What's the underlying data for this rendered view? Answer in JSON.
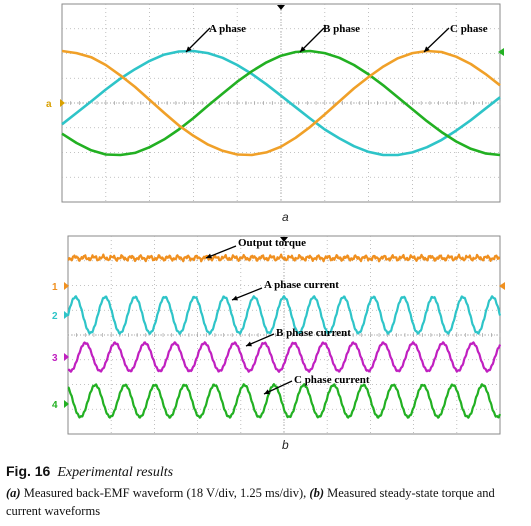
{
  "chart_data": [
    {
      "panel_label": "a",
      "type": "line",
      "x": [
        0,
        1,
        2,
        3,
        4,
        5,
        6,
        7,
        8,
        9,
        10,
        11,
        12,
        13,
        14,
        15,
        16,
        17,
        18,
        19,
        20,
        21,
        22,
        23,
        24,
        25,
        26,
        27,
        28,
        29,
        30
      ],
      "series": [
        {
          "name": "A phase",
          "color": "#2ec4c8",
          "values": [
            -0.41,
            -0.19,
            0.03,
            0.26,
            0.47,
            0.65,
            0.81,
            0.93,
            0.99,
            1.0,
            0.96,
            0.87,
            0.73,
            0.56,
            0.36,
            0.14,
            -0.08,
            -0.3,
            -0.51,
            -0.68,
            -0.83,
            -0.94,
            -1.0,
            -1.0,
            -0.95,
            -0.85,
            -0.71,
            -0.53,
            -0.33,
            -0.11,
            0.11
          ]
        },
        {
          "name": "B phase",
          "color": "#22b022",
          "values": [
            -0.59,
            -0.77,
            -0.91,
            -0.99,
            -1.0,
            -0.96,
            -0.85,
            -0.7,
            -0.51,
            -0.29,
            -0.05,
            0.18,
            0.41,
            0.61,
            0.78,
            0.91,
            0.98,
            1.0,
            0.96,
            0.87,
            0.73,
            0.55,
            0.34,
            0.11,
            -0.12,
            -0.35,
            -0.56,
            -0.74,
            -0.88,
            -0.97,
            -1.0
          ]
        },
        {
          "name": "C phase",
          "color": "#f0a028",
          "values": [
            1.0,
            0.96,
            0.88,
            0.73,
            0.53,
            0.31,
            0.06,
            -0.19,
            -0.43,
            -0.63,
            -0.8,
            -0.92,
            -0.99,
            -1.0,
            -0.95,
            -0.84,
            -0.67,
            -0.46,
            -0.22,
            0.03,
            0.28,
            0.5,
            0.7,
            0.86,
            0.96,
            1.0,
            0.98,
            0.89,
            0.75,
            0.56,
            0.34
          ]
        }
      ],
      "annotations": [
        "A phase",
        "B phase",
        "C phase"
      ],
      "channel_markers": [
        "a"
      ],
      "grid": true,
      "background": "#ffffff",
      "grid_color": "#b0b0b0"
    },
    {
      "panel_label": "b",
      "type": "line",
      "x_periods": 14.5,
      "series": [
        {
          "name": "Output torque",
          "color": "#f09020",
          "kind": "flat-noisy",
          "channel": "1"
        },
        {
          "name": "A phase current",
          "color": "#2ec4c8",
          "kind": "sine",
          "channel": "2"
        },
        {
          "name": "B phase current",
          "color": "#c020c0",
          "kind": "sine",
          "channel": "3"
        },
        {
          "name": "C phase current",
          "color": "#22b022",
          "kind": "sine",
          "channel": "4"
        }
      ],
      "annotations": [
        "Output torque",
        "A phase current",
        "B phase current",
        "C phase current"
      ],
      "channel_markers": [
        "1",
        "2",
        "3",
        "4"
      ],
      "grid": true,
      "background": "#ffffff",
      "grid_color": "#b0b0b0"
    }
  ],
  "figure": {
    "sub_a": "a",
    "sub_b": "b"
  },
  "caption": {
    "fig_label": "Fig. 16",
    "fig_title": "Experimental results",
    "a_label": "(a)",
    "a_text": "Measured back-EMF waveform (18 V/div, 1.25 ms/div),",
    "b_label": "(b)",
    "b_text": "Measured steady-state torque and current waveforms"
  }
}
